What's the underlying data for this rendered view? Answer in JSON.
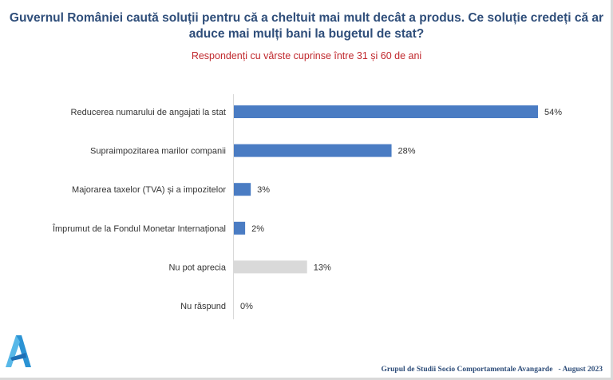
{
  "title": "Guvernul României caută soluții pentru că a cheltuit mai mult decât a produs. Ce soluție credeți că ar aduce mai mulți bani la bugetul de stat?",
  "subtitle": "Respondenți cu vârste cuprinse între 31 și 60 de ani",
  "footer": "Grupul de Studii Socio Comportamentale Avangarde   - August 2023",
  "colors": {
    "primary": "#4a7cc3",
    "neutral": "#d9d9d9",
    "title": "#2f4e7a",
    "subtitle": "#c0282d"
  },
  "logo": {
    "icon": "avangarde-logo-icon"
  },
  "chart_data": {
    "type": "bar",
    "orientation": "horizontal",
    "categories": [
      "Reducerea numarului de angajati la stat",
      "Supraimpozitarea marilor companii",
      "Majorarea taxelor (TVA) și a impozitelor",
      "Împrumut de la Fondul Monetar Internațional",
      "Nu pot aprecia",
      "Nu răspund"
    ],
    "values": [
      54,
      28,
      3,
      2,
      13,
      0
    ],
    "value_labels": [
      "54%",
      "28%",
      "3%",
      "2%",
      "13%",
      "0%"
    ],
    "bar_colors": [
      "#4a7cc3",
      "#4a7cc3",
      "#4a7cc3",
      "#4a7cc3",
      "#d9d9d9",
      "#d9d9d9"
    ],
    "unit": "%",
    "xlim": [
      0,
      54
    ],
    "grid": false,
    "legend": "none"
  }
}
